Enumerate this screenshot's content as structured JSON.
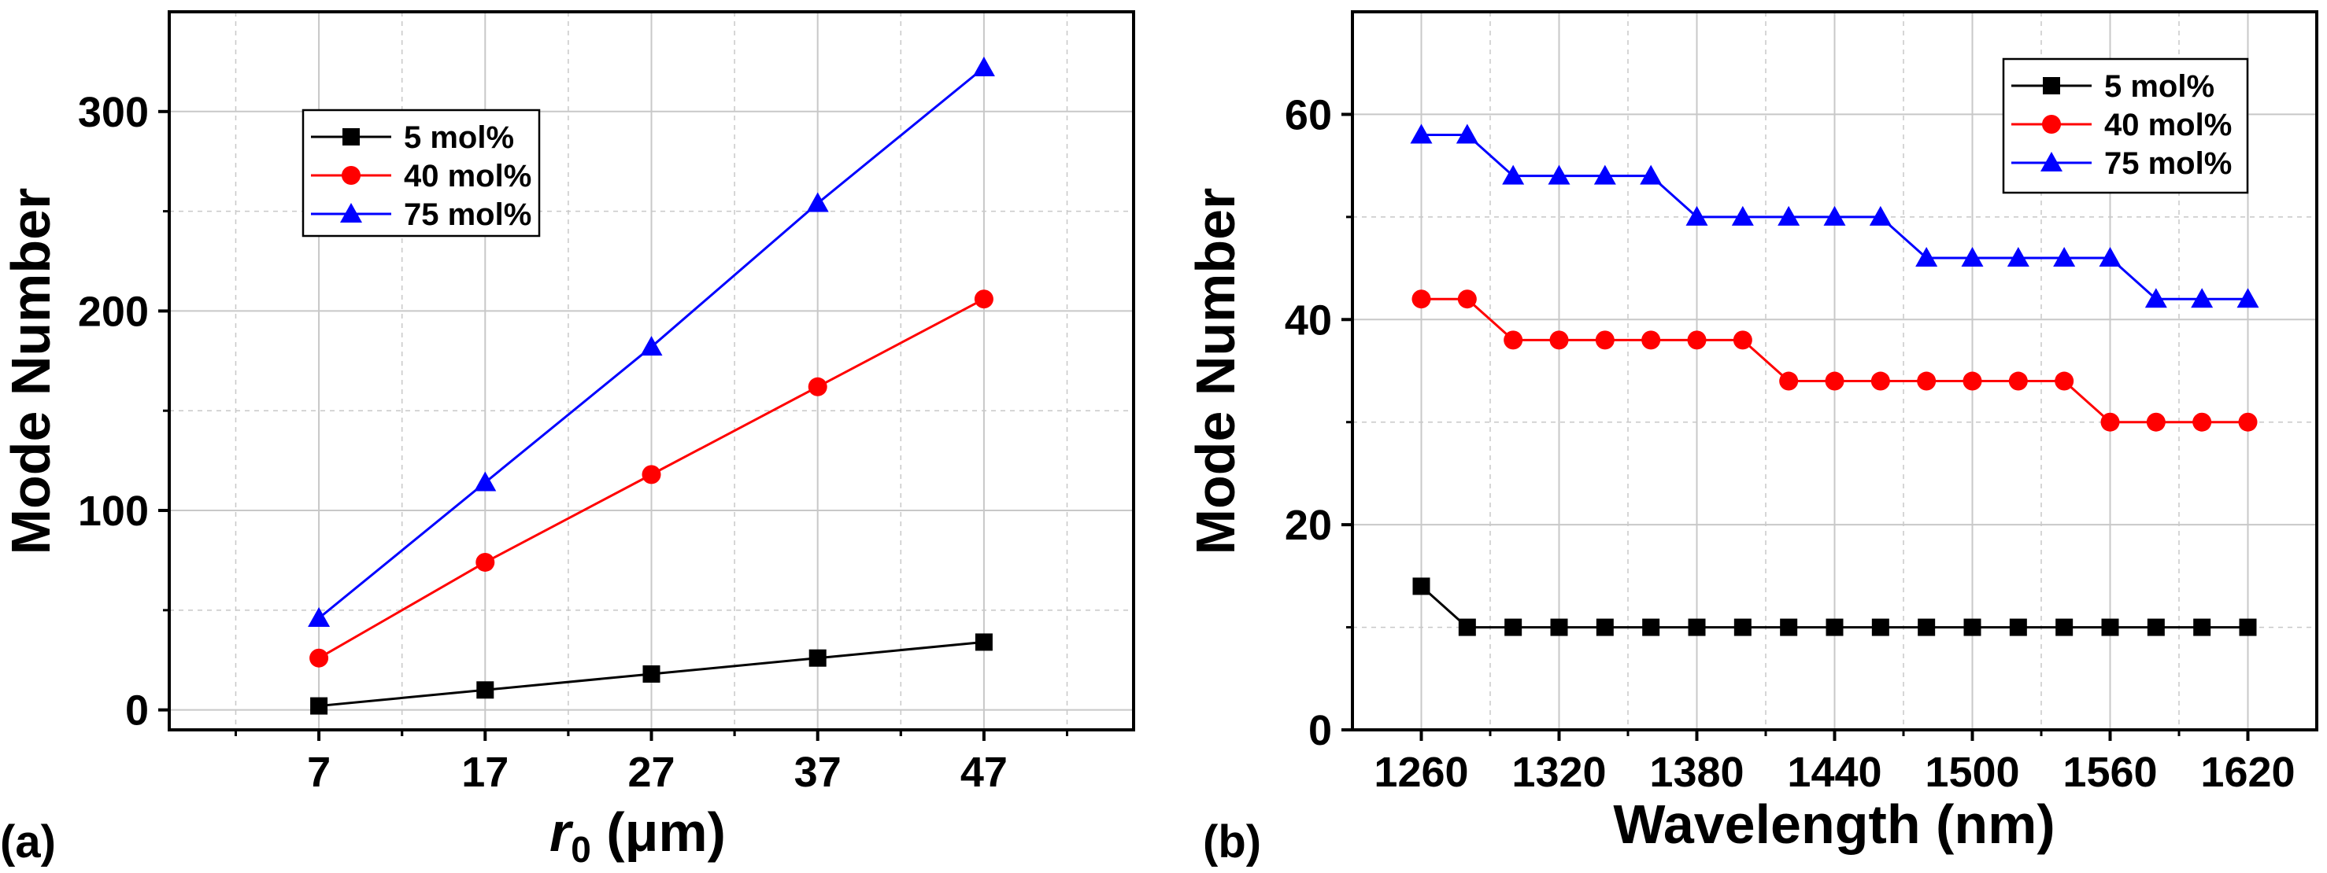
{
  "figure": {
    "background": "#ffffff",
    "grid_color": "#c8c8c8",
    "series_colors": {
      "5 mol%": "#000000",
      "40 mol%": "#ff0000",
      "75 mol%": "#0000ff"
    }
  },
  "chart_data": [
    {
      "type": "line",
      "panel_label": "(a)",
      "title": "",
      "xlabel": "",
      "xlabel_parts": {
        "symbol": "r",
        "subscript": "0",
        "unit": " (μm)"
      },
      "ylabel": "Mode Number",
      "x": [
        7,
        17,
        27,
        37,
        47
      ],
      "xlim": [
        -2,
        56
      ],
      "ylim": [
        -10,
        350
      ],
      "xticks": [
        7,
        17,
        27,
        37,
        47
      ],
      "yticks": [
        0,
        100,
        200,
        300
      ],
      "grid": true,
      "legend_position": "upper-left",
      "series": [
        {
          "name": "5 mol%",
          "color": "#000000",
          "marker": "square",
          "values": [
            2,
            10,
            18,
            26,
            34
          ]
        },
        {
          "name": "40 mol%",
          "color": "#ff0000",
          "marker": "circle",
          "values": [
            26,
            74,
            118,
            162,
            206
          ]
        },
        {
          "name": "75 mol%",
          "color": "#0000ff",
          "marker": "triangle",
          "values": [
            46,
            114,
            182,
            254,
            322
          ]
        }
      ]
    },
    {
      "type": "line",
      "panel_label": "(b)",
      "title": "",
      "xlabel": "Wavelength (nm)",
      "ylabel": "Mode Number",
      "x": [
        1260,
        1280,
        1300,
        1320,
        1340,
        1360,
        1380,
        1400,
        1420,
        1440,
        1460,
        1480,
        1500,
        1520,
        1540,
        1560,
        1580,
        1600,
        1620
      ],
      "xlim": [
        1230,
        1650
      ],
      "ylim": [
        0,
        70
      ],
      "xticks": [
        1260,
        1320,
        1380,
        1440,
        1500,
        1560,
        1620
      ],
      "yticks": [
        0,
        20,
        40,
        60
      ],
      "grid": true,
      "legend_position": "top-right",
      "series": [
        {
          "name": "5 mol%",
          "color": "#000000",
          "marker": "square",
          "values": [
            14,
            10,
            10,
            10,
            10,
            10,
            10,
            10,
            10,
            10,
            10,
            10,
            10,
            10,
            10,
            10,
            10,
            10,
            10
          ]
        },
        {
          "name": "40 mol%",
          "color": "#ff0000",
          "marker": "circle",
          "values": [
            42,
            42,
            38,
            38,
            38,
            38,
            38,
            38,
            34,
            34,
            34,
            34,
            34,
            34,
            34,
            30,
            30,
            30,
            30
          ]
        },
        {
          "name": "75 mol%",
          "color": "#0000ff",
          "marker": "triangle",
          "values": [
            58,
            58,
            54,
            54,
            54,
            54,
            50,
            50,
            50,
            50,
            50,
            46,
            46,
            46,
            46,
            46,
            42,
            42,
            42
          ]
        }
      ]
    }
  ]
}
